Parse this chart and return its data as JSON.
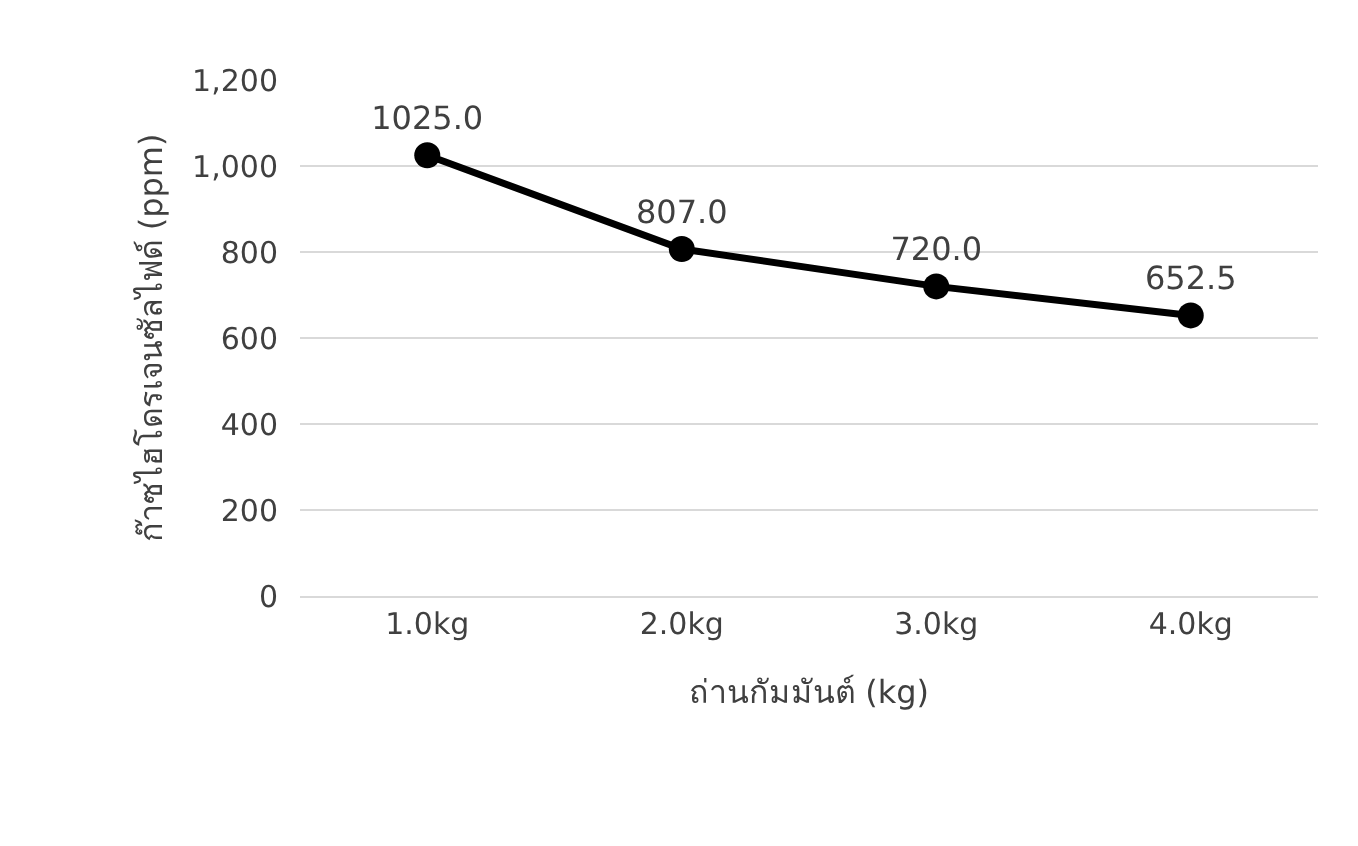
{
  "chart_data": {
    "type": "line",
    "xlabel": "ถ่านกัมมันต์ (kg)",
    "ylabel": "ก๊าซไฮโดรเจนซัลไฟด์ (ppm)",
    "categories": [
      "1.0kg",
      "2.0kg",
      "3.0kg",
      "4.0kg"
    ],
    "series": [
      {
        "color": "#000000",
        "values": [
          1025.0,
          807.0,
          720.0,
          652.5
        ],
        "value_labels": [
          "1025.0",
          "807.0",
          "720.0",
          "652.5"
        ]
      }
    ],
    "ylim": [
      0,
      1200
    ],
    "yticks": [
      0,
      200,
      400,
      600,
      800,
      {
        "value": 1000,
        "label": "1,000"
      },
      {
        "value": 1200,
        "label": "1,200"
      }
    ],
    "grid": "y",
    "marker": "circle",
    "line_style": "solid",
    "legend": false
  }
}
